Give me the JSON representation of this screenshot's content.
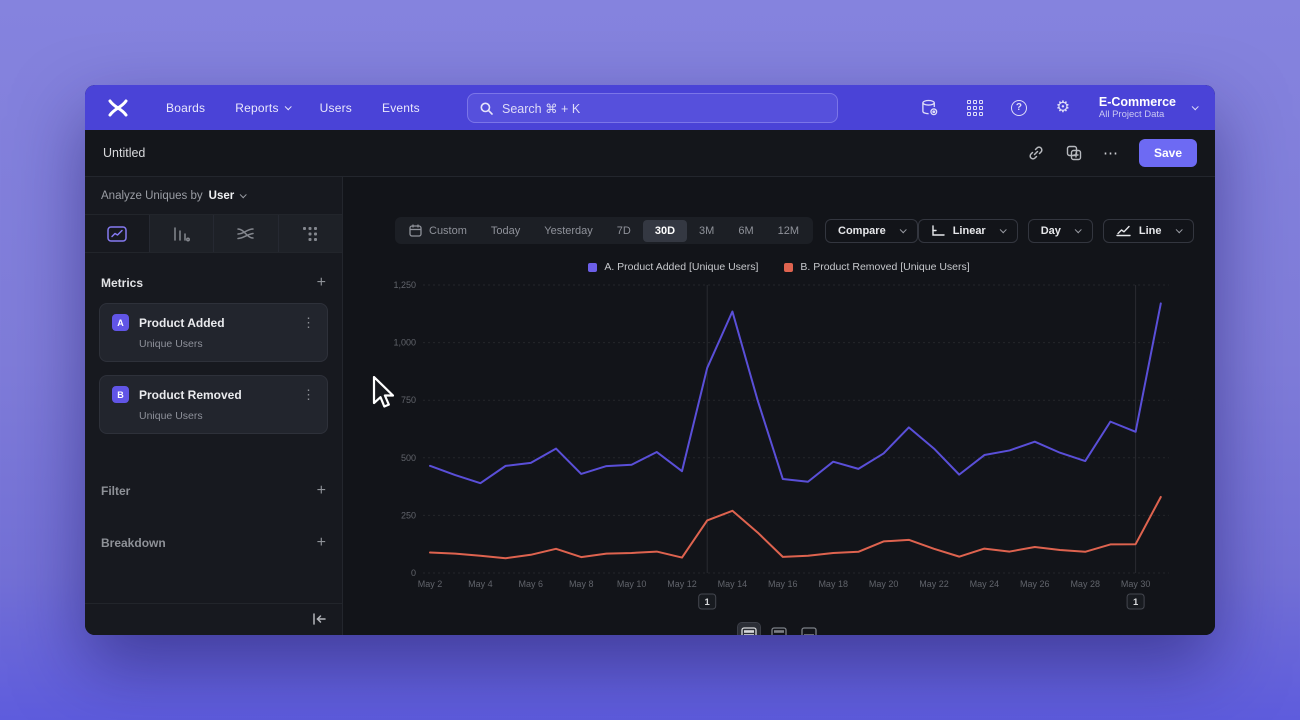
{
  "topnav": {
    "menu": [
      "Boards",
      "Reports",
      "Users",
      "Events"
    ],
    "search_placeholder": "Search  ⌘ + K",
    "project_name": "E-Commerce",
    "project_scope": "All Project Data"
  },
  "toolbar": {
    "title": "Untitled",
    "more_label": "⋯",
    "save_label": "Save"
  },
  "sidebar": {
    "analyze_prefix": "Analyze Uniques by",
    "analyze_value": "User",
    "metrics_label": "Metrics",
    "metrics": [
      {
        "badge": "A",
        "name": "Product Added",
        "subtitle": "Unique Users",
        "menu": "⋮"
      },
      {
        "badge": "B",
        "name": "Product Removed",
        "subtitle": "Unique Users",
        "menu": "⋮"
      }
    ],
    "filter_label": "Filter",
    "breakdown_label": "Breakdown"
  },
  "controls": {
    "ranges": [
      "Custom",
      "Today",
      "Yesterday",
      "7D",
      "30D",
      "3M",
      "6M",
      "12M"
    ],
    "selected_range": "30D",
    "compare_label": "Compare",
    "scale_label": "Linear",
    "interval_label": "Day",
    "charttype_label": "Line"
  },
  "legend": [
    {
      "label": "A. Product Added [Unique Users]",
      "color": "#6c5fe8"
    },
    {
      "label": "B. Product Removed [Unique Users]",
      "color": "#de634f"
    }
  ],
  "chart_data": {
    "type": "line",
    "title": "",
    "x": [
      "May 2",
      "May 3",
      "May 4",
      "May 5",
      "May 6",
      "May 7",
      "May 8",
      "May 9",
      "May 10",
      "May 11",
      "May 12",
      "May 13",
      "May 14",
      "May 15",
      "May 16",
      "May 17",
      "May 18",
      "May 19",
      "May 20",
      "May 21",
      "May 22",
      "May 23",
      "May 24",
      "May 25",
      "May 26",
      "May 27",
      "May 28",
      "May 29",
      "May 30",
      "May 31"
    ],
    "x_label_step": 2,
    "series": [
      {
        "name": "A. Product Added [Unique Users]",
        "color": "#5a4fd8",
        "values": [
          465,
          425,
          390,
          465,
          478,
          540,
          430,
          464,
          470,
          525,
          442,
          890,
          1135,
          750,
          408,
          396,
          483,
          452,
          519,
          632,
          540,
          427,
          512,
          532,
          570,
          522,
          486,
          657,
          613,
          1170
        ]
      },
      {
        "name": "B. Product Removed [Unique Users]",
        "color": "#de634f",
        "values": [
          89,
          84,
          75,
          64,
          79,
          105,
          69,
          84,
          87,
          93,
          67,
          228,
          270,
          176,
          70,
          75,
          87,
          92,
          137,
          144,
          105,
          71,
          106,
          93,
          113,
          100,
          92,
          124,
          125,
          330
        ]
      }
    ],
    "ylim": [
      0,
      1250
    ],
    "yticks": [
      0,
      250,
      500,
      750,
      1000,
      1250
    ],
    "grid": "horizontal-dashed",
    "legend_position": "top-center",
    "annotations": [
      {
        "x_index": 11,
        "x": "May 13",
        "label": "1"
      },
      {
        "x_index": 28,
        "x": "May 30",
        "label": "1"
      }
    ]
  }
}
